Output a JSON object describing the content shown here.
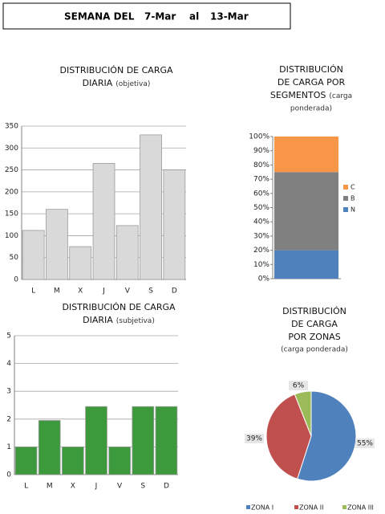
{
  "header": {
    "label": "SEMANA DEL",
    "from": "7-Mar",
    "joiner": "al",
    "to": "13-Mar"
  },
  "chart_data": [
    {
      "type": "bar",
      "title": [
        "DISTRIBUCIÓN DE CARGA",
        "DIARIA"
      ],
      "subtitle": [
        "(objetiva)"
      ],
      "categories": [
        "L",
        "M",
        "X",
        "J",
        "V",
        "S",
        "D"
      ],
      "values": [
        112,
        160,
        75,
        265,
        123,
        330,
        250
      ],
      "color": "#d9d9d9",
      "ylim": [
        0,
        350
      ],
      "yticks": [
        0,
        50,
        100,
        150,
        200,
        250,
        300,
        350
      ],
      "grid": true
    },
    {
      "type": "stacked-bar",
      "title": [
        "DISTRIBUCIÓN",
        "DE CARGA POR",
        "SEGMENTOS"
      ],
      "subtitle": [
        "(carga",
        "ponderada)"
      ],
      "categories": [
        null
      ],
      "series": [
        {
          "name": "N",
          "color": "#4f81bd",
          "values": [
            20
          ]
        },
        {
          "name": "B",
          "color": "#808080",
          "values": [
            55
          ]
        },
        {
          "name": "C",
          "color": "#f79646",
          "values": [
            25
          ]
        }
      ],
      "ylim": [
        0,
        100
      ],
      "yticks": [
        {
          "value": 0,
          "label": "0%"
        },
        {
          "value": 10,
          "label": "10%"
        },
        {
          "value": 20,
          "label": "20%"
        },
        {
          "value": 30,
          "label": "30%"
        },
        {
          "value": 40,
          "label": "40%"
        },
        {
          "value": 50,
          "label": "50%"
        },
        {
          "value": 60,
          "label": "60%"
        },
        {
          "value": 70,
          "label": "70%"
        },
        {
          "value": 80,
          "label": "80%"
        },
        {
          "value": 90,
          "label": "90%"
        },
        {
          "value": 100,
          "label": "100%"
        }
      ],
      "grid": false,
      "legend": "right"
    },
    {
      "type": "bar",
      "title": [
        "DISTRIBUCIÓN DE CARGA",
        "DIARIA"
      ],
      "subtitle": [
        "(subjetiva)"
      ],
      "categories": [
        "L",
        "M",
        "X",
        "J",
        "V",
        "S",
        "D"
      ],
      "values": [
        1,
        1.95,
        1,
        2.45,
        1,
        2.45,
        2.45
      ],
      "color": "#3c9a3c",
      "ylim": [
        0,
        5
      ],
      "yticks": [
        0,
        1,
        2,
        3,
        4,
        5
      ],
      "grid": true
    },
    {
      "type": "pie",
      "title": [
        "DISTRIBUCIÓN",
        "DE CARGA",
        "POR ZONAS"
      ],
      "subtitle": [
        "(carga ponderada)"
      ],
      "categories": [
        "ZONA I",
        "ZONA II",
        "ZONA III"
      ],
      "values": [
        55,
        39,
        6
      ],
      "value_labels": [
        "55%",
        "39%",
        "6%"
      ],
      "colors": [
        "#4f81bd",
        "#c0504d",
        "#9bbb59"
      ],
      "legend": "bottom"
    }
  ]
}
